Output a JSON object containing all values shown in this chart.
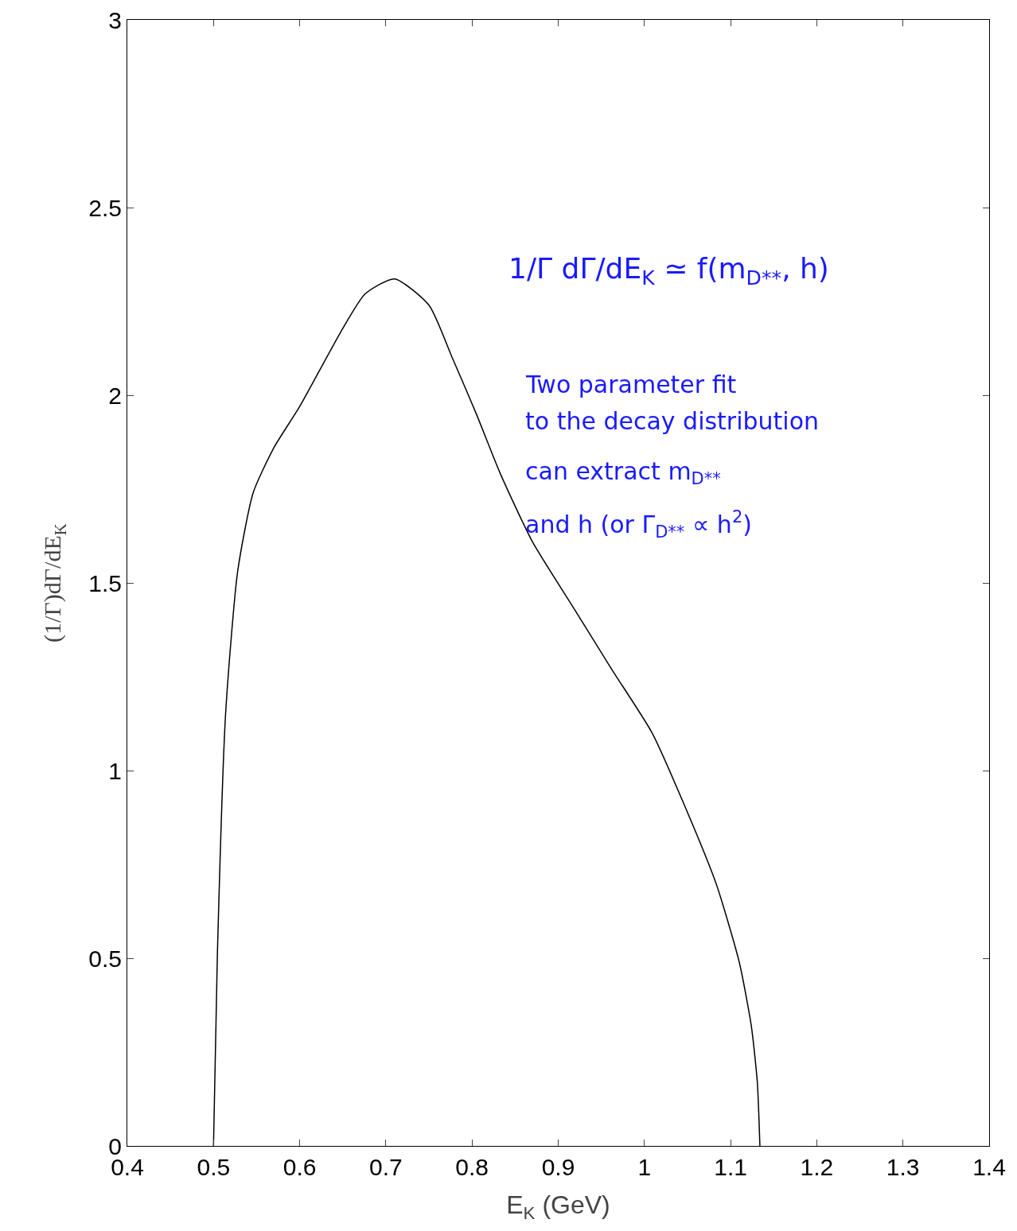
{
  "chart_data": {
    "type": "line",
    "xlabel": "E$_{K}$ (GeV)",
    "ylabel": "(1/Γ)dΓ/dE$_{K}$",
    "x": [
      0.5,
      0.5045,
      0.514,
      0.528,
      0.546,
      0.57,
      0.6,
      0.648,
      0.676,
      0.71,
      0.75,
      0.777,
      0.805,
      0.833,
      0.87,
      0.916,
      0.962,
      1.009,
      1.046,
      1.083,
      1.11,
      1.124,
      1.131,
      1.134
    ],
    "series": [
      {
        "color": "#000000",
        "values": [
          0,
          0.51,
          1.15,
          1.53,
          1.74,
          1.86,
          1.97,
          2.17,
          2.27,
          2.31,
          2.24,
          2.1,
          1.95,
          1.79,
          1.61,
          1.44,
          1.27,
          1.1,
          0.91,
          0.7,
          0.49,
          0.32,
          0.17,
          0
        ]
      }
    ],
    "xlim": [
      0.4,
      1.4
    ],
    "xticks": [
      0.4,
      0.5,
      0.6,
      0.7,
      0.8,
      0.9,
      1,
      1.1,
      1.2,
      1.3,
      1.4
    ],
    "ylim": [
      0,
      3
    ],
    "yticks": [
      0,
      0.5,
      1,
      1.5,
      2,
      2.5,
      3
    ],
    "grid": false,
    "marker": "none",
    "line_style": "solid",
    "annotations": [
      "1/Γ dΓ/dE$_{K}$ ≃ f(m$_{D**}$, h)",
      "Two parameter fit",
      "to the decay distribution",
      "can extract m$_{D**}$",
      "and h (or Γ$_{D**}$ ∝ h$^{2}$)"
    ]
  }
}
